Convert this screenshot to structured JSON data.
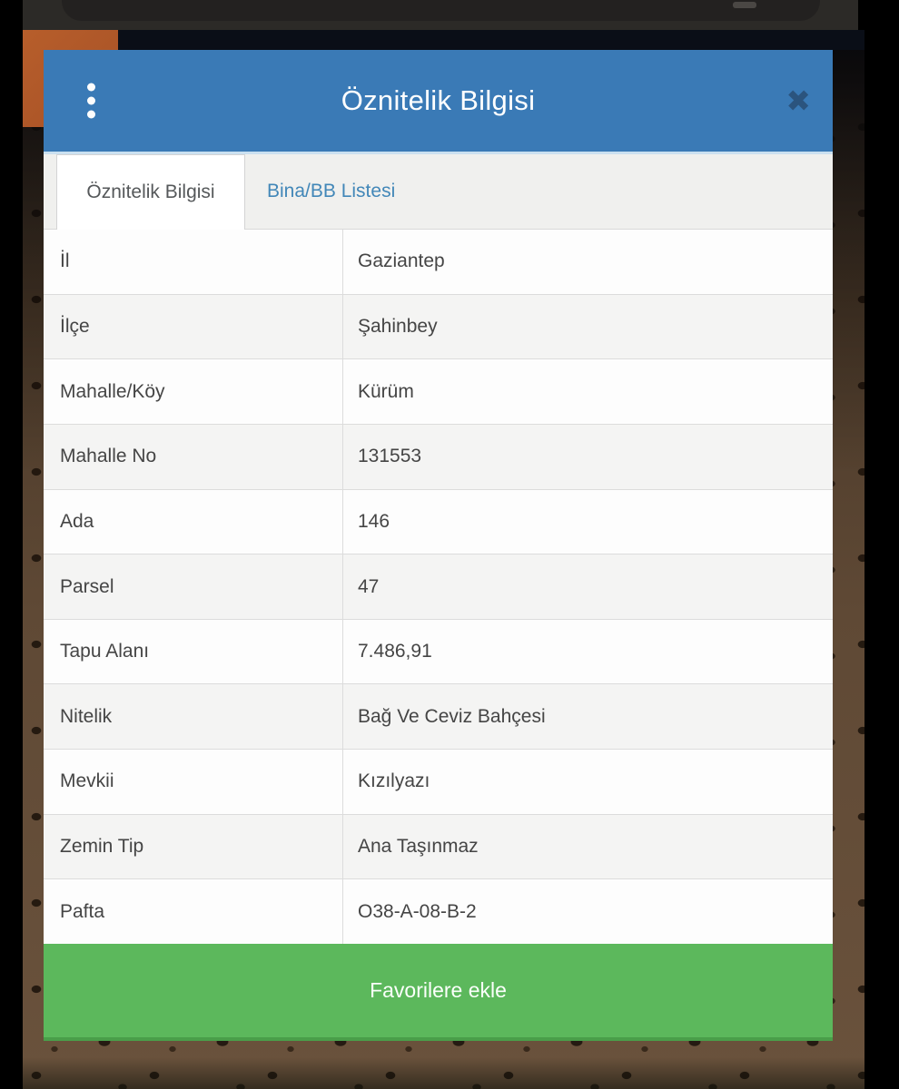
{
  "colors": {
    "header_blue": "#3a7ab6",
    "header_accent_line": "#cbe0f0",
    "close_icon_blue": "#2b547e",
    "tab_link_blue": "#4287b8",
    "tab_active_text": "#55585a",
    "row_alt_gray": "#f4f4f3",
    "button_green": "#5cb85c",
    "button_green_dark": "#4a9e4a",
    "orange_patch": "#ad5628",
    "map_brown": "#5a4533",
    "topbar_gray": "#2c2a27"
  },
  "dialog": {
    "title": "Öznitelik Bilgisi",
    "close_icon_glyph": "✖",
    "kebab_icon": "vertical-three-dots-icon"
  },
  "tabs": [
    {
      "label": "Öznitelik Bilgisi",
      "active": true
    },
    {
      "label": "Bina/BB Listesi",
      "active": false
    }
  ],
  "table": {
    "rows": [
      {
        "label": "İl",
        "value": "Gaziantep"
      },
      {
        "label": "İlçe",
        "value": "Şahinbey"
      },
      {
        "label": "Mahalle/Köy",
        "value": "Kürüm"
      },
      {
        "label": "Mahalle No",
        "value": "131553"
      },
      {
        "label": "Ada",
        "value": "146"
      },
      {
        "label": "Parsel",
        "value": "47"
      },
      {
        "label": "Tapu Alanı",
        "value": "7.486,91"
      },
      {
        "label": "Nitelik",
        "value": "Bağ Ve Ceviz Bahçesi"
      },
      {
        "label": "Mevkii",
        "value": "Kızılyazı"
      },
      {
        "label": "Zemin Tip",
        "value": "Ana Taşınmaz"
      },
      {
        "label": "Pafta",
        "value": "O38-A-08-B-2"
      }
    ]
  },
  "favorites_button": {
    "label": "Favorilere ekle"
  }
}
